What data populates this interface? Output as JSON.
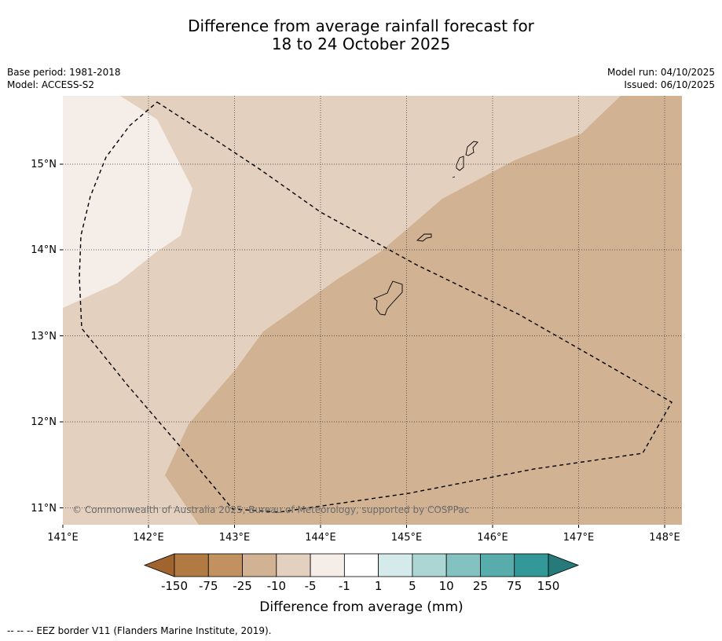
{
  "title": {
    "line1": "Difference from average rainfall forecast for",
    "line2": "18 to 24 October 2025"
  },
  "meta": {
    "base_period": "Base period: 1981-2018",
    "model": "Model: ACCESS-S2",
    "model_run": "Model run: 04/10/2025",
    "issued": "Issued: 06/10/2025"
  },
  "map": {
    "lon_ticks": [
      "141°E",
      "142°E",
      "143°E",
      "144°E",
      "145°E",
      "146°E",
      "147°E",
      "148°E"
    ],
    "lat_ticks": [
      "15°N",
      "14°N",
      "13°N",
      "12°N",
      "11°N"
    ],
    "copyright": "© Commonwealth of Australia 2025, Bureau of Meteorology, supported by COSPPac",
    "colors": {
      "near_normal_dry": "#f5ede7",
      "dry_5_10": "#e3d0bf",
      "dry_10_25": "#d1b293"
    }
  },
  "legend": {
    "labels": [
      "-150",
      "-75",
      "-25",
      "-10",
      "-5",
      "-1",
      "1",
      "5",
      "10",
      "25",
      "75",
      "150"
    ],
    "colors": [
      "#a0642e",
      "#b07a42",
      "#c1925f",
      "#d1b293",
      "#e3d0bf",
      "#f5ede7",
      "#ffffff",
      "#d5eaea",
      "#acd6d3",
      "#84c2c1",
      "#58adac",
      "#339998",
      "#267a79"
    ],
    "title": "Difference from average (mm)"
  },
  "footer": {
    "eez_note": "--  --  -- EEZ border V11 (Flanders Marine Institute, 2019)."
  }
}
